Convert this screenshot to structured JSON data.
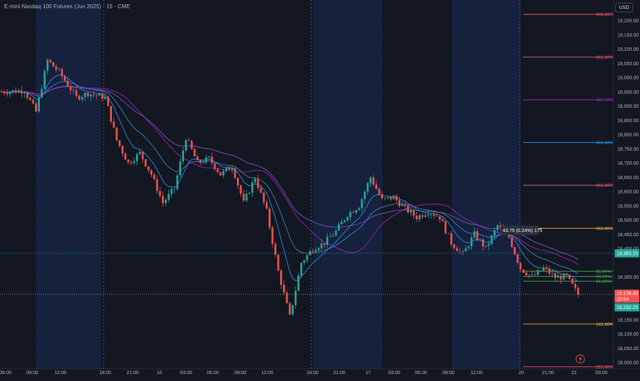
{
  "header": {
    "title": "E-mini Nasdaq 100 Futures (Jun 2025) · 15 · CME",
    "currency_button": "USD"
  },
  "price_axis": {
    "labels": [
      "19,200.00",
      "19,150.00",
      "19,100.00",
      "19,050.00",
      "19,000.00",
      "18,950.00",
      "18,900.00",
      "18,850.00",
      "18,800.00",
      "18,750.00",
      "18,700.00",
      "18,650.00",
      "18,600.00",
      "18,550.00",
      "18,500.00",
      "18,450.00",
      "18,400.00",
      "18,300.00",
      "18,250.00",
      "18,150.00",
      "18,100.00",
      "18,050.00",
      "18,000.00"
    ],
    "values": [
      19200,
      19150,
      19100,
      19050,
      19000,
      18950,
      18900,
      18850,
      18800,
      18750,
      18700,
      18650,
      18600,
      18550,
      18500,
      18450,
      18400,
      18300,
      18250,
      18150,
      18100,
      18050,
      18000
    ]
  },
  "time_axis": {
    "labels": [
      "06:00",
      "09:00",
      "12:00",
      "18:00",
      "21:00",
      "16",
      "03:00",
      "06:00",
      "09:00",
      "12:00",
      "18:00",
      "21:00",
      "17",
      "03:00",
      "06:00",
      "09:00",
      "12:00",
      "20",
      "21:00",
      "21",
      "03:00"
    ]
  },
  "price_tags": {
    "current_value": 18383.25,
    "current": "18,383.25",
    "last_value": 18239,
    "last": "18,239.00",
    "countdown": "10:54",
    "low_value": 18232.25,
    "low": "18,232.25"
  },
  "measure_label": "43.75 (0.24%) 175",
  "fib_levels": [
    {
      "label": "661.80%",
      "value": 19222,
      "color": "#f7525f"
    },
    {
      "label": "561.80%",
      "value": 19072,
      "color": "#f7525f"
    },
    {
      "label": "461.80%",
      "value": 18922,
      "color": "#9c27b0"
    },
    {
      "label": "361.80%",
      "value": 18772,
      "color": "#2196f3"
    },
    {
      "label": "261.80%",
      "value": 18622,
      "color": "#f7525f"
    },
    {
      "label": "161.80%",
      "value": 18471,
      "color": "#ffb74d"
    },
    {
      "label": "61.80%",
      "value": 18320,
      "color": "#4caf50"
    },
    {
      "label": "50.00%",
      "value": 18302,
      "color": "#4caf50"
    },
    {
      "label": "61.80%",
      "value": 18285,
      "color": "#4caf50"
    },
    {
      "label": "161.80%",
      "value": 18135,
      "color": "#ffb74d"
    },
    {
      "label": "261.80%",
      "value": 17985,
      "color": "#f7525f"
    }
  ],
  "colors": {
    "background": "#131722",
    "session_highlight": "#16213d",
    "up_candle": "#26a69a",
    "down_candle": "#ef5350",
    "ema_fast": "#2196f3",
    "ema_slow": "#42a5f5",
    "sma_purple": "#9c27b0",
    "current_price_line": "#26a69a",
    "last_price_line": "#ef5350"
  },
  "icons": {
    "alert": "lightning-icon"
  },
  "chart_data": {
    "type": "candlestick",
    "instrument": "E-mini Nasdaq 100 Futures (Jun 2025)",
    "interval": "15",
    "exchange": "CME",
    "ylim": [
      17980,
      19240
    ],
    "anchors": [
      [
        0,
        18950
      ],
      [
        8,
        18955
      ],
      [
        12,
        18880
      ],
      [
        16,
        19060
      ],
      [
        20,
        19020
      ],
      [
        26,
        18930
      ],
      [
        30,
        18945
      ],
      [
        36,
        18930
      ],
      [
        40,
        18780
      ],
      [
        44,
        18700
      ],
      [
        48,
        18735
      ],
      [
        52,
        18660
      ],
      [
        56,
        18560
      ],
      [
        60,
        18610
      ],
      [
        64,
        18790
      ],
      [
        68,
        18700
      ],
      [
        72,
        18715
      ],
      [
        76,
        18660
      ],
      [
        80,
        18690
      ],
      [
        84,
        18560
      ],
      [
        88,
        18650
      ],
      [
        92,
        18530
      ],
      [
        96,
        18320
      ],
      [
        100,
        18160
      ],
      [
        104,
        18350
      ],
      [
        108,
        18400
      ],
      [
        112,
        18420
      ],
      [
        116,
        18460
      ],
      [
        120,
        18520
      ],
      [
        124,
        18550
      ],
      [
        128,
        18650
      ],
      [
        132,
        18570
      ],
      [
        136,
        18580
      ],
      [
        140,
        18540
      ],
      [
        144,
        18510
      ],
      [
        148,
        18530
      ],
      [
        152,
        18510
      ],
      [
        156,
        18420
      ],
      [
        160,
        18380
      ],
      [
        164,
        18450
      ],
      [
        168,
        18400
      ],
      [
        172,
        18480
      ],
      [
        176,
        18440
      ],
      [
        180,
        18330
      ],
      [
        184,
        18300
      ],
      [
        188,
        18330
      ],
      [
        192,
        18300
      ],
      [
        196,
        18300
      ],
      [
        200,
        18239
      ]
    ]
  }
}
